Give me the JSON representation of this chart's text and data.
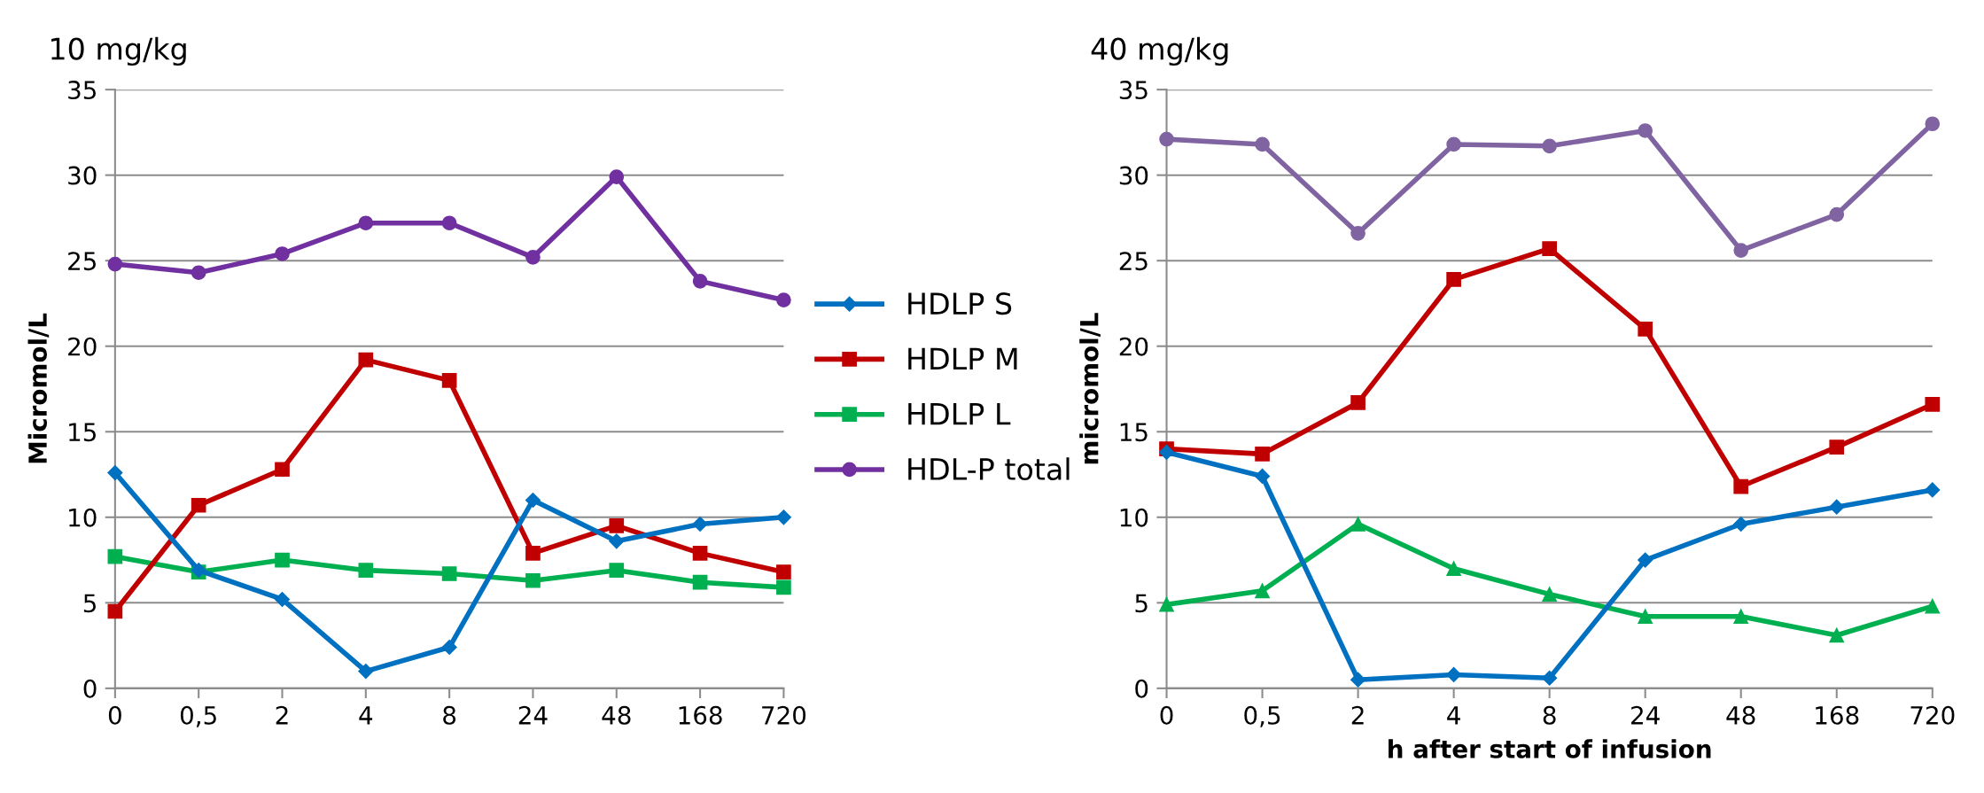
{
  "chart_data": [
    {
      "type": "line",
      "title": "10 mg/kg",
      "ylabel": "Micromol/L",
      "categories": [
        "0",
        "0,5",
        "2",
        "4",
        "8",
        "24",
        "48",
        "168",
        "720"
      ],
      "ylim": [
        0,
        35
      ],
      "yticks": [
        0,
        5,
        10,
        15,
        20,
        25,
        30,
        35
      ],
      "grid": "y",
      "legend": "right",
      "series": [
        {
          "name": "HDLP S",
          "color": "#0070c0",
          "marker": "diamond",
          "values": [
            12.6,
            6.9,
            5.2,
            1.0,
            2.4,
            11.0,
            8.6,
            9.6,
            10.0
          ]
        },
        {
          "name": "HDLP M",
          "color": "#c00000",
          "marker": "square",
          "values": [
            4.5,
            10.7,
            12.8,
            19.2,
            18.0,
            7.9,
            9.5,
            7.9,
            6.8
          ]
        },
        {
          "name": "HDLP L",
          "color": "#00b050",
          "marker": "square",
          "values": [
            7.7,
            6.8,
            7.5,
            6.9,
            6.7,
            6.3,
            6.9,
            6.2,
            5.9
          ]
        },
        {
          "name": "HDL-P total",
          "color": "#7030a0",
          "marker": "circle",
          "values": [
            24.8,
            24.3,
            25.4,
            27.2,
            27.2,
            25.2,
            29.9,
            23.8,
            22.7
          ]
        }
      ]
    },
    {
      "type": "line",
      "title": "40 mg/kg",
      "ylabel": "micromol/L",
      "xlabel": "h after start of infusion",
      "categories": [
        "0",
        "0,5",
        "2",
        "4",
        "8",
        "24",
        "48",
        "168",
        "720"
      ],
      "ylim": [
        0,
        35
      ],
      "yticks": [
        0,
        5,
        10,
        15,
        20,
        25,
        30,
        35
      ],
      "grid": "y",
      "series": [
        {
          "color": "#0070c0",
          "marker": "diamond",
          "values": [
            13.8,
            12.4,
            0.5,
            0.8,
            0.6,
            7.5,
            9.6,
            10.6,
            11.6
          ]
        },
        {
          "color": "#c00000",
          "marker": "square",
          "values": [
            14.0,
            13.7,
            16.7,
            23.9,
            25.7,
            21.0,
            11.8,
            14.1,
            16.6
          ]
        },
        {
          "color": "#00b050",
          "marker": "triangle",
          "values": [
            4.9,
            5.7,
            9.6,
            7.0,
            5.5,
            4.2,
            4.2,
            3.1,
            4.8
          ]
        },
        {
          "color": "#8064a2",
          "marker": "circle",
          "values": [
            32.1,
            31.8,
            26.6,
            31.8,
            31.7,
            32.6,
            25.6,
            27.7,
            33.0
          ]
        }
      ]
    }
  ]
}
